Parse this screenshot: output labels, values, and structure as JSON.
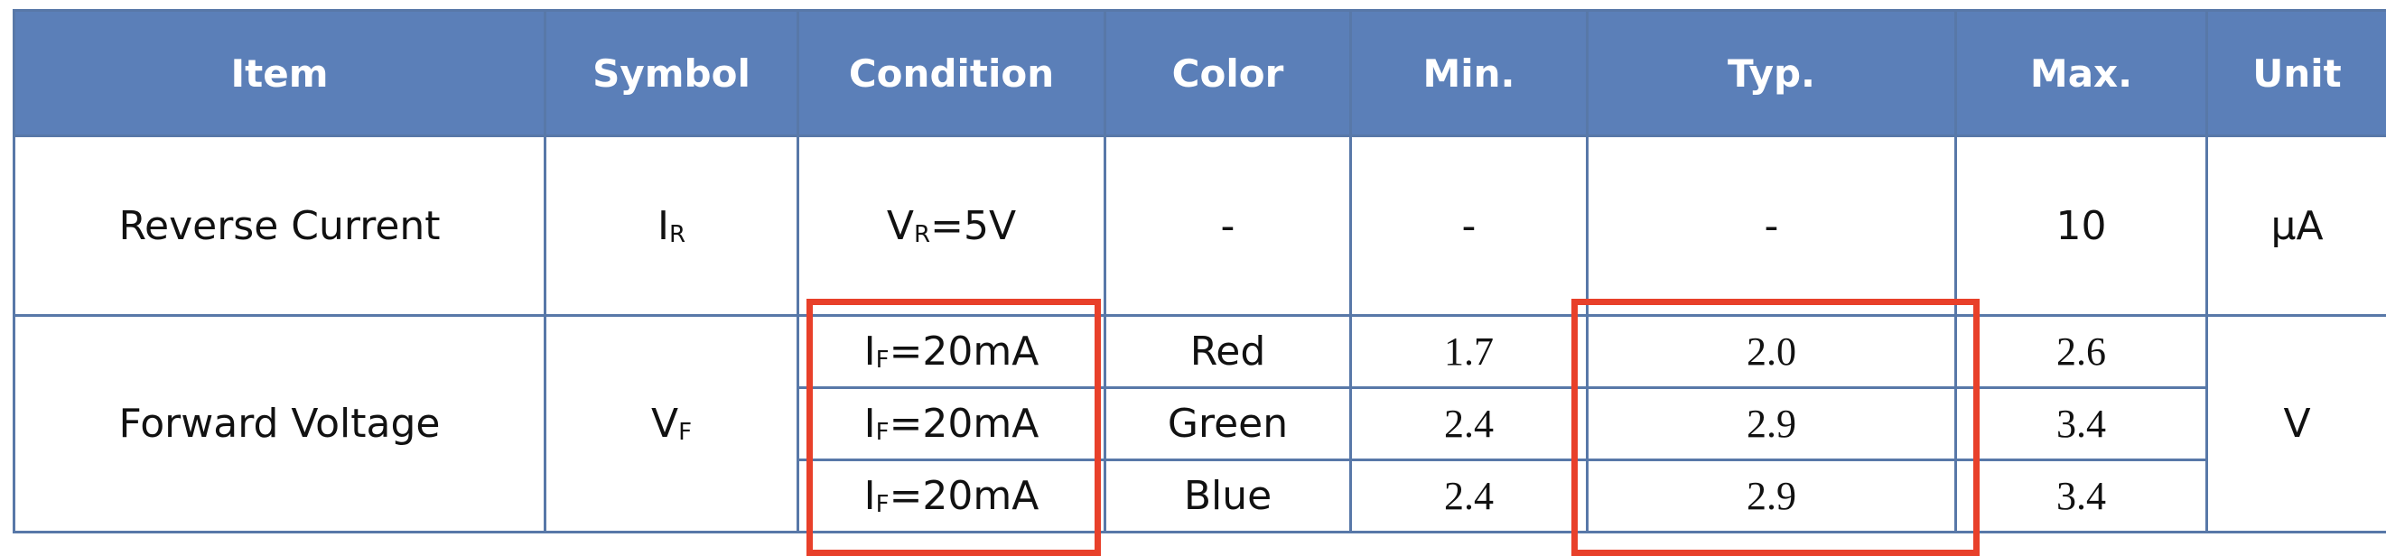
{
  "headers": {
    "item": "Item",
    "symbol": "Symbol",
    "condition": "Condition",
    "color": "Color",
    "min": "Min.",
    "typ": "Typ.",
    "max": "Max.",
    "unit": "Unit"
  },
  "reverse_current": {
    "item": "Reverse Current",
    "symbol_main": "I",
    "symbol_sub": "R",
    "condition_main": "V",
    "condition_sub": "R",
    "condition_value": "=5V",
    "color": "-",
    "min": "-",
    "typ": "-",
    "max": "10",
    "unit": "μA"
  },
  "forward_voltage": {
    "item": "Forward Voltage",
    "symbol_main": "V",
    "symbol_sub": "F",
    "unit": "V",
    "rows": [
      {
        "condition_main": "I",
        "condition_sub": "F",
        "condition_value": "=20mA",
        "color": "Red",
        "min": "1.7",
        "typ": "2.0",
        "max": "2.6"
      },
      {
        "condition_main": "I",
        "condition_sub": "F",
        "condition_value": "=20mA",
        "color": "Green",
        "min": "2.4",
        "typ": "2.9",
        "max": "3.4"
      },
      {
        "condition_main": "I",
        "condition_sub": "F",
        "condition_value": "=20mA",
        "color": "Blue",
        "min": "2.4",
        "typ": "2.9",
        "max": "3.4"
      }
    ]
  },
  "annotation_color": "#e8402a",
  "header_color": "#5b7fb8",
  "border_color": "#5878a8"
}
